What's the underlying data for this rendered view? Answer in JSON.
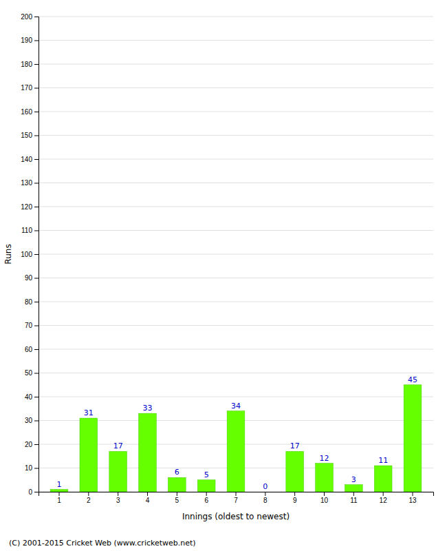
{
  "chart_data": {
    "type": "bar",
    "categories": [
      "1",
      "2",
      "3",
      "4",
      "5",
      "6",
      "7",
      "8",
      "9",
      "10",
      "11",
      "12",
      "13"
    ],
    "values": [
      1,
      31,
      17,
      33,
      6,
      5,
      34,
      0,
      17,
      12,
      3,
      11,
      45
    ],
    "color": "#66ff00",
    "xlabel": "Innings (oldest to newest)",
    "ylabel": "Runs",
    "ylim": [
      0,
      200
    ],
    "yticks": [
      0,
      10,
      20,
      30,
      40,
      50,
      60,
      70,
      80,
      90,
      100,
      110,
      120,
      130,
      140,
      150,
      160,
      170,
      180,
      190,
      200
    ],
    "grid": true,
    "data_labels": true,
    "annotations": [
      "(C) 2001-2015 Cricket Web (www.cricketweb.net)"
    ]
  }
}
